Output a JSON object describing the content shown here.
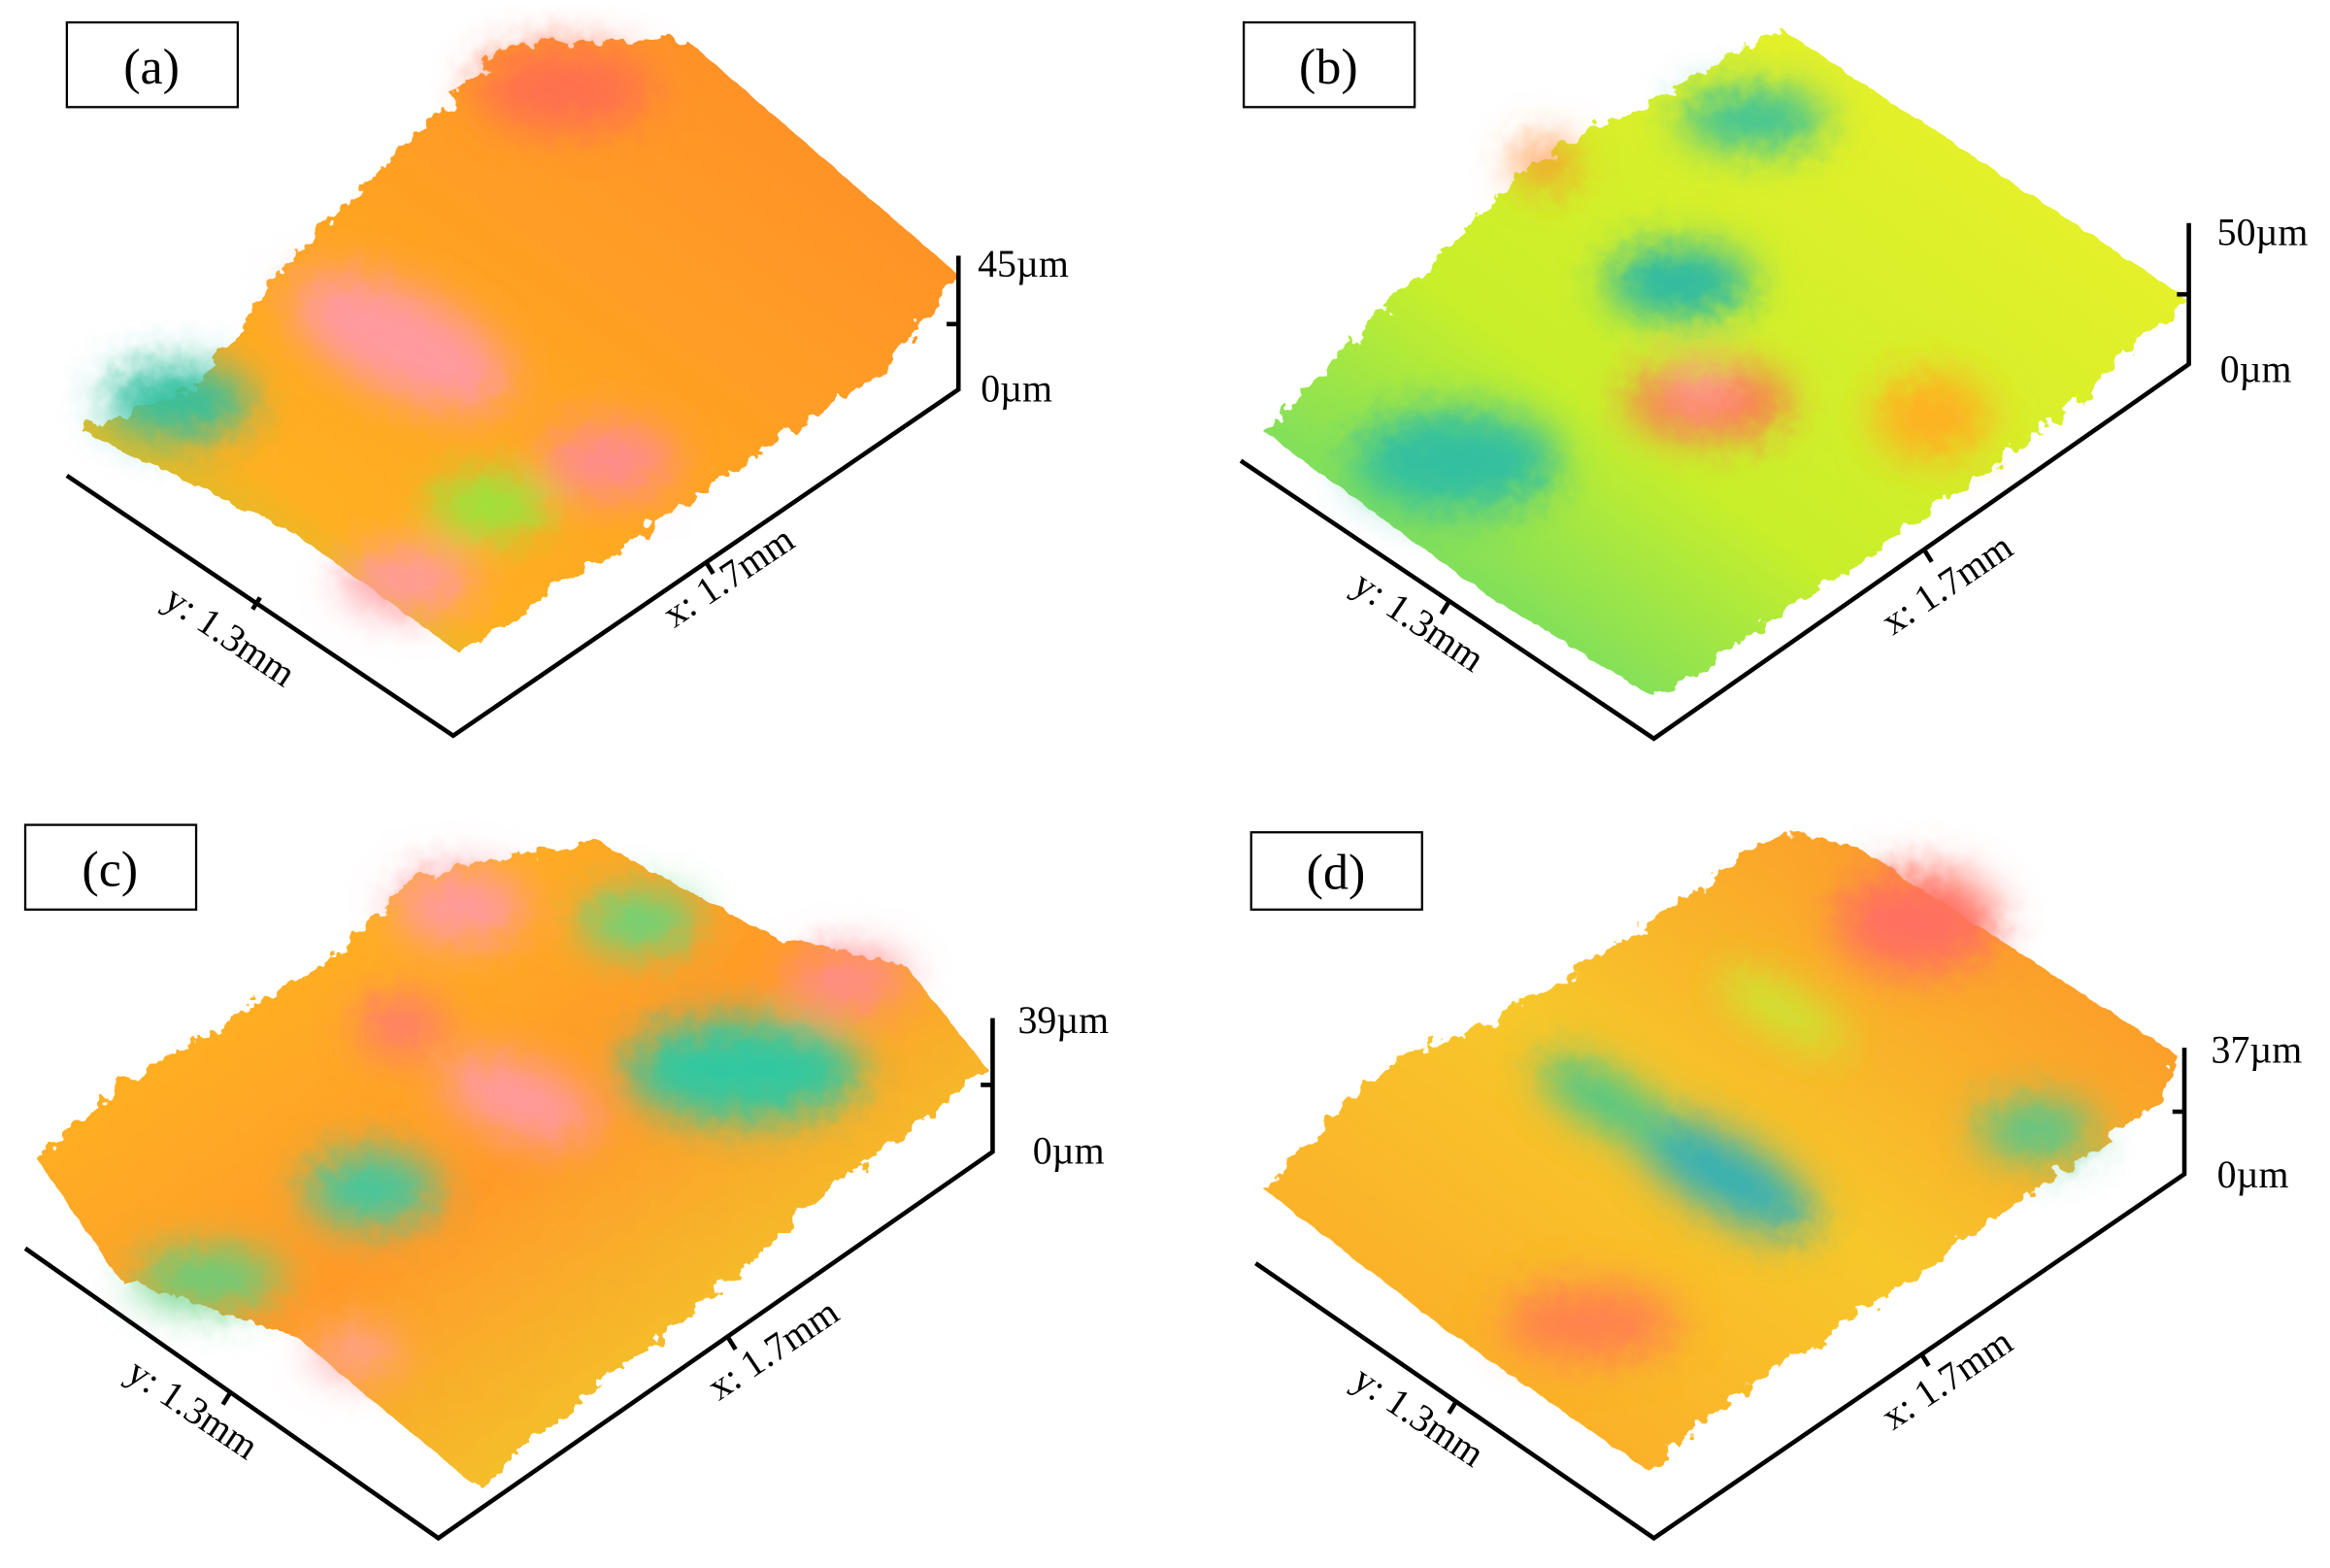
{
  "panels": [
    {
      "label": "(a)",
      "y_axis": "y: 1.3mm",
      "x_axis": "x: 1.7mm",
      "z_top": "45µm",
      "z_bottom": "0µm"
    },
    {
      "label": "(b)",
      "y_axis": "y: 1.3mm",
      "x_axis": "x: 1.7mm",
      "z_top": "50µm",
      "z_bottom": "0µm"
    },
    {
      "label": "(c)",
      "y_axis": "y: 1.3mm",
      "x_axis": "x: 1.7mm",
      "z_top": "39µm",
      "z_bottom": "0µm"
    },
    {
      "label": "(d)",
      "y_axis": "y: 1.3mm",
      "x_axis": "x: 1.7mm",
      "z_top": "37µm",
      "z_bottom": "0µm"
    }
  ]
}
